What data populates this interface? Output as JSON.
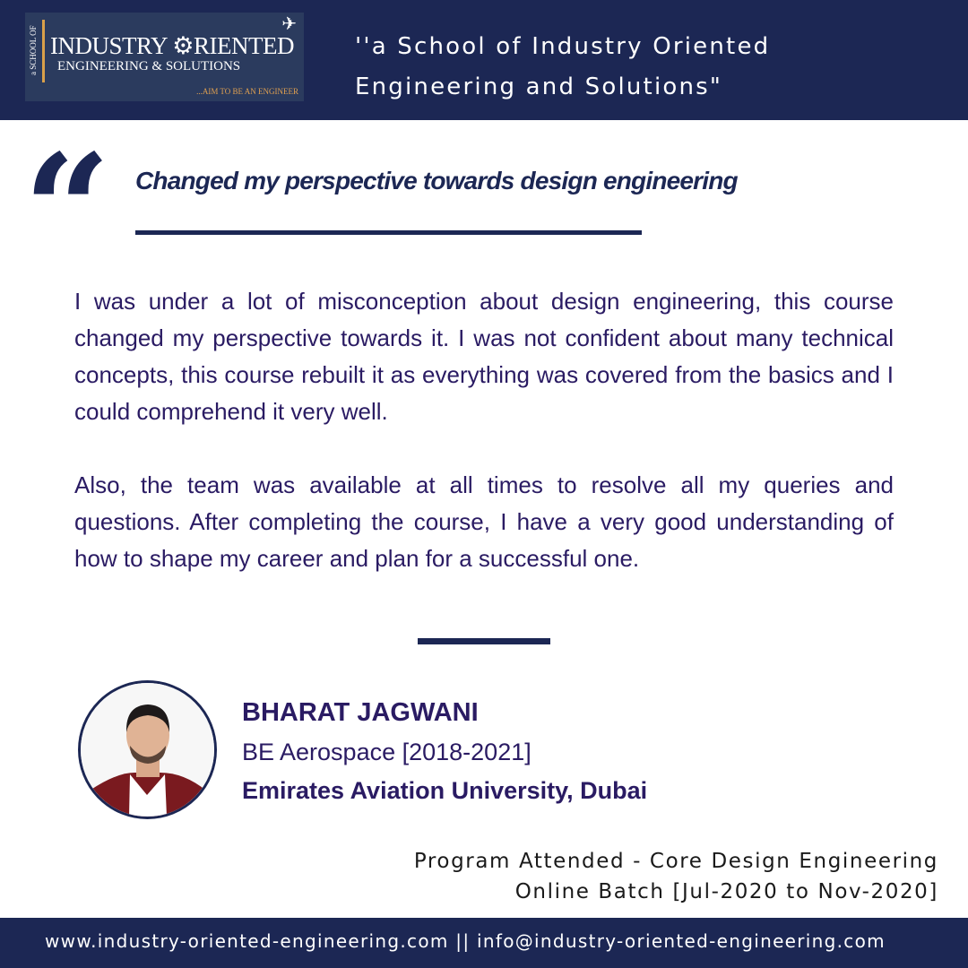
{
  "colors": {
    "navy": "#1c2754",
    "text": "#2a1b63",
    "accent": "#d9a04a"
  },
  "logo": {
    "side": "a SCHOOL OF",
    "line1": "INDUSTRY ⚙RIENTED",
    "line2": "ENGINEERING & SOLUTIONS",
    "line3": "...AIM TO BE AN ENGINEER",
    "icon": "airplane-icon"
  },
  "header": {
    "tagline_1": "''a School of Industry Oriented",
    "tagline_2": "Engineering and Solutions\""
  },
  "quote": {
    "mark": "“",
    "headline": "Changed my perspective towards design engineering"
  },
  "body": {
    "p1": "I was under a lot of misconception about design engineering, this course changed my perspective towards it. I was not confident about many technical concepts, this course rebuilt it as everything was covered from the basics and I could comprehend it very well.",
    "p2": "Also, the team was available at all times to resolve all my queries and questions. After completing the course, I have a very good understanding of how to shape my career and plan for a successful one."
  },
  "person": {
    "name": "BHARAT JAGWANI",
    "degree": "BE Aerospace [2018-2021]",
    "university": "Emirates Aviation University, Dubai"
  },
  "program": {
    "line1": "Program Attended - Core Design Engineering",
    "line2": "Online Batch [Jul-2020 to Nov-2020]"
  },
  "footer": {
    "text": "www.industry-oriented-engineering.com || info@industry-oriented-engineering.com"
  }
}
